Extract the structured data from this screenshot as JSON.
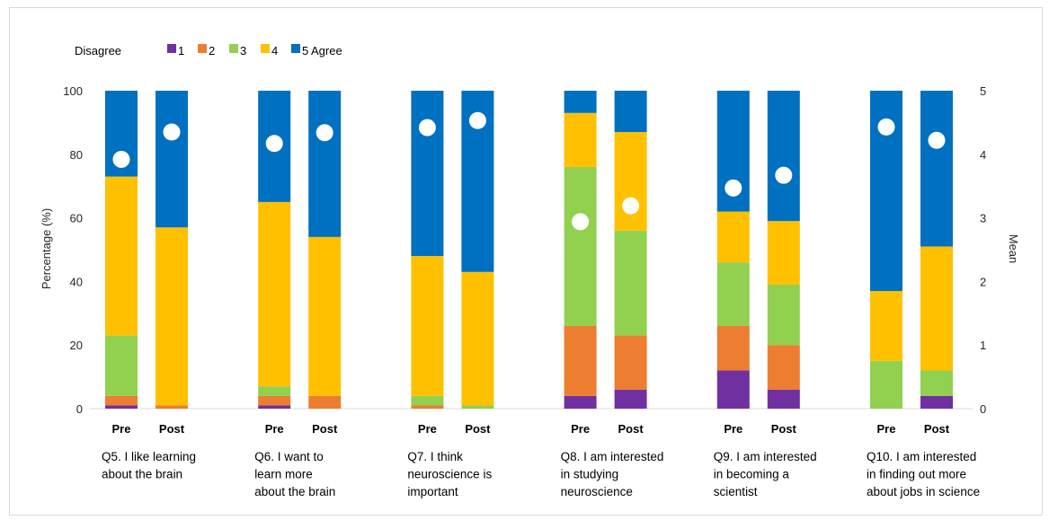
{
  "chart_data": {
    "type": "bar",
    "stacked": true,
    "ylabel": "Percentage (%)",
    "y2label": "Mean",
    "ylim": [
      0,
      100
    ],
    "y2lim": [
      0,
      5
    ],
    "yticks": [
      0,
      20,
      40,
      60,
      80,
      100
    ],
    "y2ticks": [
      0,
      1,
      2,
      3,
      4,
      5
    ],
    "legend": {
      "left_label": "Disagree",
      "right_label": "Agree",
      "placement": "top-left",
      "entries": [
        "1",
        "2",
        "3",
        "4",
        "5"
      ]
    },
    "colors": {
      "1": "#7030a0",
      "2": "#ed7d31",
      "3": "#92d050",
      "4": "#ffc000",
      "5": "#0070c0",
      "mean": "#ffffff"
    },
    "groups": [
      {
        "question": [
          "Q5. I like learning",
          "about the brain"
        ],
        "bars": [
          {
            "label": "Pre",
            "values": [
              1,
              3,
              19,
              50,
              27
            ],
            "mean": 3.92
          },
          {
            "label": "Post",
            "values": [
              0,
              1,
              0,
              56,
              43
            ],
            "mean": 4.35
          }
        ]
      },
      {
        "question": [
          "Q6. I want to",
          "learn more",
          "about the brain"
        ],
        "bars": [
          {
            "label": "Pre",
            "values": [
              1,
              3,
              3,
              58,
              35
            ],
            "mean": 4.17
          },
          {
            "label": "Post",
            "values": [
              0,
              4,
              0,
              50,
              46
            ],
            "mean": 4.34
          }
        ]
      },
      {
        "question": [
          "Q7. I think",
          "neuroscience is",
          "important"
        ],
        "bars": [
          {
            "label": "Pre",
            "values": [
              0,
              1,
              3,
              44,
              52
            ],
            "mean": 4.42
          },
          {
            "label": "Post",
            "values": [
              0,
              0,
              1,
              42,
              57
            ],
            "mean": 4.53
          }
        ]
      },
      {
        "question": [
          "Q8. I am interested",
          "in studying",
          "neuroscience"
        ],
        "bars": [
          {
            "label": "Pre",
            "values": [
              4,
              22,
              50,
              17,
              7
            ],
            "mean": 2.94
          },
          {
            "label": "Post",
            "values": [
              6,
              17,
              33,
              31,
              13
            ],
            "mean": 3.19
          }
        ]
      },
      {
        "question": [
          "Q9. I am interested",
          "in becoming a",
          "scientist"
        ],
        "bars": [
          {
            "label": "Pre",
            "values": [
              12,
              14,
              20,
              16,
              38
            ],
            "mean": 3.47
          },
          {
            "label": "Post",
            "values": [
              6,
              14,
              19,
              20,
              41
            ],
            "mean": 3.67
          }
        ]
      },
      {
        "question": [
          "Q10. I am interested",
          "in finding out more",
          "about jobs in science"
        ],
        "bars": [
          {
            "label": "Pre",
            "values": [
              0,
              0,
              15,
              22,
              63
            ],
            "mean": 4.43
          },
          {
            "label": "Post",
            "values": [
              4,
              0,
              8,
              39,
              49
            ],
            "mean": 4.22
          }
        ]
      }
    ]
  }
}
